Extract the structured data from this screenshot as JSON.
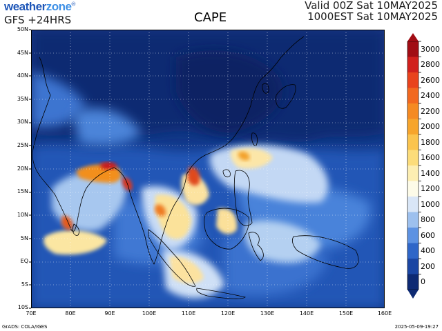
{
  "header": {
    "logo_main": "weather",
    "logo_accent": "zone",
    "logo_mark": "®",
    "run_label": "GFS +24HRS",
    "title": "CAPE",
    "valid_utc": "Valid 00Z Sat 10MAY2025",
    "valid_local": "1000EST Sat 10MAY2025"
  },
  "map": {
    "lat_labels": [
      "50N",
      "45N",
      "40N",
      "35N",
      "30N",
      "25N",
      "20N",
      "15N",
      "10N",
      "5N",
      "EQ",
      "5S",
      "10S"
    ],
    "lon_labels": [
      "70E",
      "80E",
      "90E",
      "100E",
      "110E",
      "120E",
      "130E",
      "140E",
      "150E",
      "160E"
    ],
    "lat_range": [
      -10,
      50
    ],
    "lon_range": [
      70,
      160
    ],
    "grid": "dotted",
    "colors": {
      "sea_deep": "#0f2d7a",
      "low": "#1c4da8",
      "mid": "#5b93dd",
      "pale": "#eaf2fb",
      "yellow": "#fbe7a0",
      "orange": "#f39a1f",
      "red": "#c8141c"
    }
  },
  "colorbar": {
    "labels": [
      "3000",
      "2800",
      "2600",
      "2400",
      "2200",
      "2000",
      "1800",
      "1600",
      "1400",
      "1200",
      "1000",
      "800",
      "600",
      "400",
      "200",
      "0"
    ],
    "colors": [
      "#a10d14",
      "#d1201d",
      "#e9431d",
      "#f2681f",
      "#f58a22",
      "#f7a52c",
      "#fbc44e",
      "#fcdc7a",
      "#fdeeb2",
      "#fdfbe8",
      "#d9e6f7",
      "#9dc0ee",
      "#5d92e2",
      "#2f66c8",
      "#1b46a3",
      "#0e2a73"
    ]
  },
  "footer": {
    "credit": "GrADS: COLA/IGES",
    "timestamp": "2025-05-09-19:27"
  }
}
